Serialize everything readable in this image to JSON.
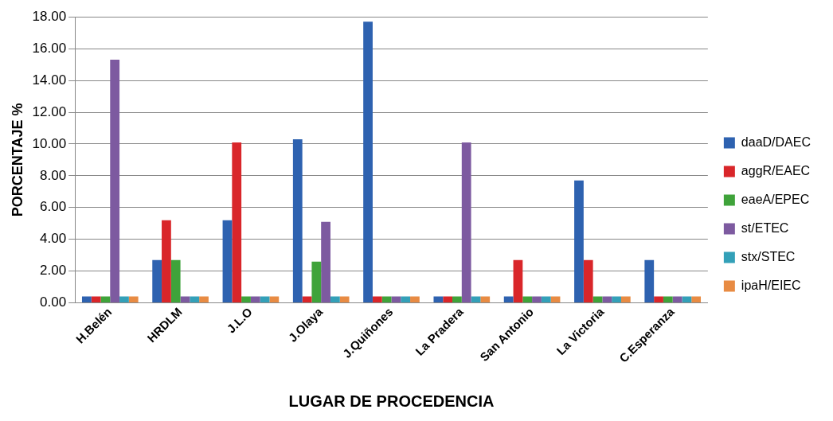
{
  "chart_data": {
    "type": "bar",
    "xlabel": "LUGAR DE PROCEDENCIA",
    "ylabel": "PORCENTAJE %",
    "categories": [
      "H.Belén",
      "HRDLM",
      "J.L.O",
      "J.Olaya",
      "J.Quiñones",
      "La Pradera",
      "San Antonio",
      "La Victoria",
      "C.Esperanza"
    ],
    "series": [
      {
        "name": "daaD/DAEC",
        "color": "#2e62b0",
        "values": [
          0.4,
          2.7,
          5.2,
          10.3,
          17.7,
          0.4,
          0.4,
          7.7,
          2.7
        ]
      },
      {
        "name": "aggR/EAEC",
        "color": "#d9262a",
        "values": [
          0.4,
          5.2,
          10.1,
          0.4,
          0.4,
          0.4,
          2.7,
          2.7,
          0.4
        ]
      },
      {
        "name": "eaeA/EPEC",
        "color": "#3fa33a",
        "values": [
          0.4,
          2.7,
          0.4,
          2.6,
          0.4,
          0.4,
          0.4,
          0.4,
          0.4
        ]
      },
      {
        "name": "st/ETEC",
        "color": "#7d5aa0",
        "values": [
          15.3,
          0.4,
          0.4,
          5.1,
          0.4,
          10.1,
          0.4,
          0.4,
          0.4
        ]
      },
      {
        "name": "stx/STEC",
        "color": "#33a0b8",
        "values": [
          0.4,
          0.4,
          0.4,
          0.4,
          0.4,
          0.4,
          0.4,
          0.4,
          0.4
        ]
      },
      {
        "name": "ipaH/EIEC",
        "color": "#e88b43",
        "values": [
          0.4,
          0.4,
          0.4,
          0.4,
          0.4,
          0.4,
          0.4,
          0.4,
          0.4
        ]
      }
    ],
    "ylim": [
      0,
      18
    ],
    "yticks": [
      {
        "value": 0,
        "label": "0.00"
      },
      {
        "value": 2,
        "label": "2.00"
      },
      {
        "value": 4,
        "label": "4.00"
      },
      {
        "value": 6,
        "label": "6.00"
      },
      {
        "value": 8,
        "label": "8.00"
      },
      {
        "value": 10,
        "label": "10.00"
      },
      {
        "value": 12,
        "label": "12.00"
      },
      {
        "value": 14,
        "label": "14.00"
      },
      {
        "value": 16,
        "label": "16.00"
      },
      {
        "value": 18,
        "label": "18.00"
      }
    ],
    "grid": "y",
    "legend": "right"
  }
}
